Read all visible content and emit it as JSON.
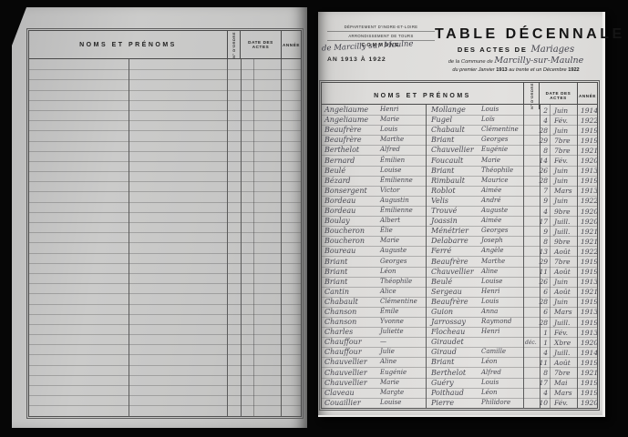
{
  "left_page": {
    "header": {
      "noms": "NOMS ET PRÉNOMS",
      "ordre": "N° D'ORDRE",
      "date": "DATE DES ACTES",
      "annee": "ANNÉE"
    }
  },
  "right_page": {
    "stamp": {
      "departement": "DÉPARTEMENT D'INDRE-ET-LOIRE",
      "arrondissement": "ARRONDISSEMENT DE TOURS",
      "commune_label": "COMMUNE",
      "commune_handwritten": "de Marcilly sur Maulne",
      "an": "AN 1913 À 1922"
    },
    "title": {
      "main": "TABLE DÉCENNALE",
      "line2_printed": "DES ACTES DE",
      "line2_handwritten": "Mariages",
      "line3_printed": "de la Commune de",
      "line3_handwritten": "Marcilly-sur-Maulne",
      "line4_prefix": "du premier Janvier ",
      "line4_year1": "1913",
      "line4_middle": " au trente et un Décembre ",
      "line4_year2": "1922"
    },
    "table": {
      "header": {
        "noms": "NOMS ET PRÉNOMS",
        "ordre": "N° D'ORDRE",
        "date": "DATE DES ACTES",
        "annee": "ANNÉE"
      },
      "rows": [
        {
          "surname": "Angeliaume",
          "firstname": "Henri",
          "spouse_surname": "Mollange",
          "spouse_firstname": "Louis",
          "order_note": "",
          "day": "2",
          "month": "Juin",
          "year": "1914"
        },
        {
          "surname": "Angeliaume",
          "firstname": "Marie",
          "spouse_surname": "Fugel",
          "spouse_firstname": "Loïs",
          "order_note": "",
          "day": "4",
          "month": "Fév.",
          "year": "1922"
        },
        {
          "surname": "Beaufrère",
          "firstname": "Louis",
          "spouse_surname": "Chabault",
          "spouse_firstname": "Clémentine",
          "order_note": "",
          "day": "28",
          "month": "Juin",
          "year": "1919"
        },
        {
          "surname": "Beaufrère",
          "firstname": "Marthe",
          "spouse_surname": "Briant",
          "spouse_firstname": "Georges",
          "order_note": "",
          "day": "29",
          "month": "7bre",
          "year": "1919"
        },
        {
          "surname": "Berthelot",
          "firstname": "Alfred",
          "spouse_surname": "Chauvellier",
          "spouse_firstname": "Eugénie",
          "order_note": "",
          "day": "8",
          "month": "7bre",
          "year": "1921"
        },
        {
          "surname": "Bernard",
          "firstname": "Émilien",
          "spouse_surname": "Foucault",
          "spouse_firstname": "Marie",
          "order_note": "",
          "day": "14",
          "month": "Fév.",
          "year": "1920"
        },
        {
          "surname": "Beulé",
          "firstname": "Louise",
          "spouse_surname": "Briant",
          "spouse_firstname": "Théophile",
          "order_note": "",
          "day": "26",
          "month": "Juin",
          "year": "1913"
        },
        {
          "surname": "Bézard",
          "firstname": "Émilienne",
          "spouse_surname": "Rimbault",
          "spouse_firstname": "Maurice",
          "order_note": "",
          "day": "28",
          "month": "Juin",
          "year": "1919"
        },
        {
          "surname": "Bonsergent",
          "firstname": "Victor",
          "spouse_surname": "Roblot",
          "spouse_firstname": "Aimée",
          "order_note": "",
          "day": "7",
          "month": "Mars",
          "year": "1913"
        },
        {
          "surname": "Bordeau",
          "firstname": "Augustin",
          "spouse_surname": "Velis",
          "spouse_firstname": "André",
          "order_note": "",
          "day": "9",
          "month": "Juin",
          "year": "1922"
        },
        {
          "surname": "Bordeau",
          "firstname": "Émilienne",
          "spouse_surname": "Trouvé",
          "spouse_firstname": "Auguste",
          "order_note": "",
          "day": "4",
          "month": "9bre",
          "year": "1920"
        },
        {
          "surname": "Boulay",
          "firstname": "Albert",
          "spouse_surname": "Joassin",
          "spouse_firstname": "Aimée",
          "order_note": "",
          "day": "17",
          "month": "Juill.",
          "year": "1920"
        },
        {
          "surname": "Boucheron",
          "firstname": "Élie",
          "spouse_surname": "Ménétrier",
          "spouse_firstname": "Georges",
          "order_note": "",
          "day": "9",
          "month": "Juill.",
          "year": "1921"
        },
        {
          "surname": "Boucheron",
          "firstname": "Marie",
          "spouse_surname": "Delabarre",
          "spouse_firstname": "Joseph",
          "order_note": "",
          "day": "8",
          "month": "9bre",
          "year": "1921"
        },
        {
          "surname": "Boureau",
          "firstname": "Auguste",
          "spouse_surname": "Ferré",
          "spouse_firstname": "Angèle",
          "order_note": "",
          "day": "13",
          "month": "Août",
          "year": "1922"
        },
        {
          "surname": "Briant",
          "firstname": "Georges",
          "spouse_surname": "Beaufrère",
          "spouse_firstname": "Marthe",
          "order_note": "",
          "day": "29",
          "month": "7bre",
          "year": "1919"
        },
        {
          "surname": "Briant",
          "firstname": "Léon",
          "spouse_surname": "Chauvellier",
          "spouse_firstname": "Aline",
          "order_note": "",
          "day": "11",
          "month": "Août",
          "year": "1919"
        },
        {
          "surname": "Briant",
          "firstname": "Théophile",
          "spouse_surname": "Beulé",
          "spouse_firstname": "Louise",
          "order_note": "",
          "day": "26",
          "month": "Juin",
          "year": "1913"
        },
        {
          "surname": "Cantin",
          "firstname": "Alice",
          "spouse_surname": "Sergeau",
          "spouse_firstname": "Henri",
          "order_note": "",
          "day": "6",
          "month": "Août",
          "year": "1921"
        },
        {
          "surname": "Chabault",
          "firstname": "Clémentine",
          "spouse_surname": "Beaufrère",
          "spouse_firstname": "Louis",
          "order_note": "",
          "day": "28",
          "month": "Juin",
          "year": "1919"
        },
        {
          "surname": "Chanson",
          "firstname": "Émile",
          "spouse_surname": "Guion",
          "spouse_firstname": "Anna",
          "order_note": "",
          "day": "6",
          "month": "Mars",
          "year": "1913"
        },
        {
          "surname": "Chanson",
          "firstname": "Yvonne",
          "spouse_surname": "Jarrossay",
          "spouse_firstname": "Raymond",
          "order_note": "",
          "day": "28",
          "month": "Juill.",
          "year": "1919"
        },
        {
          "surname": "Charles",
          "firstname": "Juliette",
          "spouse_surname": "Flocheau",
          "spouse_firstname": "Henri",
          "order_note": "",
          "day": "1",
          "month": "Fév.",
          "year": "1913"
        },
        {
          "surname": "Chauffour",
          "firstname": "—",
          "spouse_surname": "Giraudet",
          "spouse_firstname": "",
          "order_note": "déc.",
          "day": "1",
          "month": "Xbre",
          "year": "1920"
        },
        {
          "surname": "Chauffour",
          "firstname": "Julie",
          "spouse_surname": "Giraud",
          "spouse_firstname": "Camille",
          "order_note": "",
          "day": "4",
          "month": "Juill.",
          "year": "1914"
        },
        {
          "surname": "Chauvellier",
          "firstname": "Aline",
          "spouse_surname": "Briant",
          "spouse_firstname": "Léon",
          "order_note": "",
          "day": "11",
          "month": "Août",
          "year": "1919"
        },
        {
          "surname": "Chauvellier",
          "firstname": "Eugénie",
          "spouse_surname": "Berthelot",
          "spouse_firstname": "Alfred",
          "order_note": "",
          "day": "8",
          "month": "7bre",
          "year": "1921"
        },
        {
          "surname": "Chauvellier",
          "firstname": "Marie",
          "spouse_surname": "Guéry",
          "spouse_firstname": "Louis",
          "order_note": "",
          "day": "17",
          "month": "Mai",
          "year": "1919"
        },
        {
          "surname": "Claveau",
          "firstname": "Margte",
          "spouse_surname": "Poithaud",
          "spouse_firstname": "Léon",
          "order_note": "",
          "day": "4",
          "month": "Mars",
          "year": "1919"
        },
        {
          "surname": "Couaillier",
          "firstname": "Louise",
          "spouse_surname": "Pierre",
          "spouse_firstname": "Philidore",
          "order_note": "",
          "day": "10",
          "month": "Fév.",
          "year": "1920"
        }
      ]
    }
  }
}
